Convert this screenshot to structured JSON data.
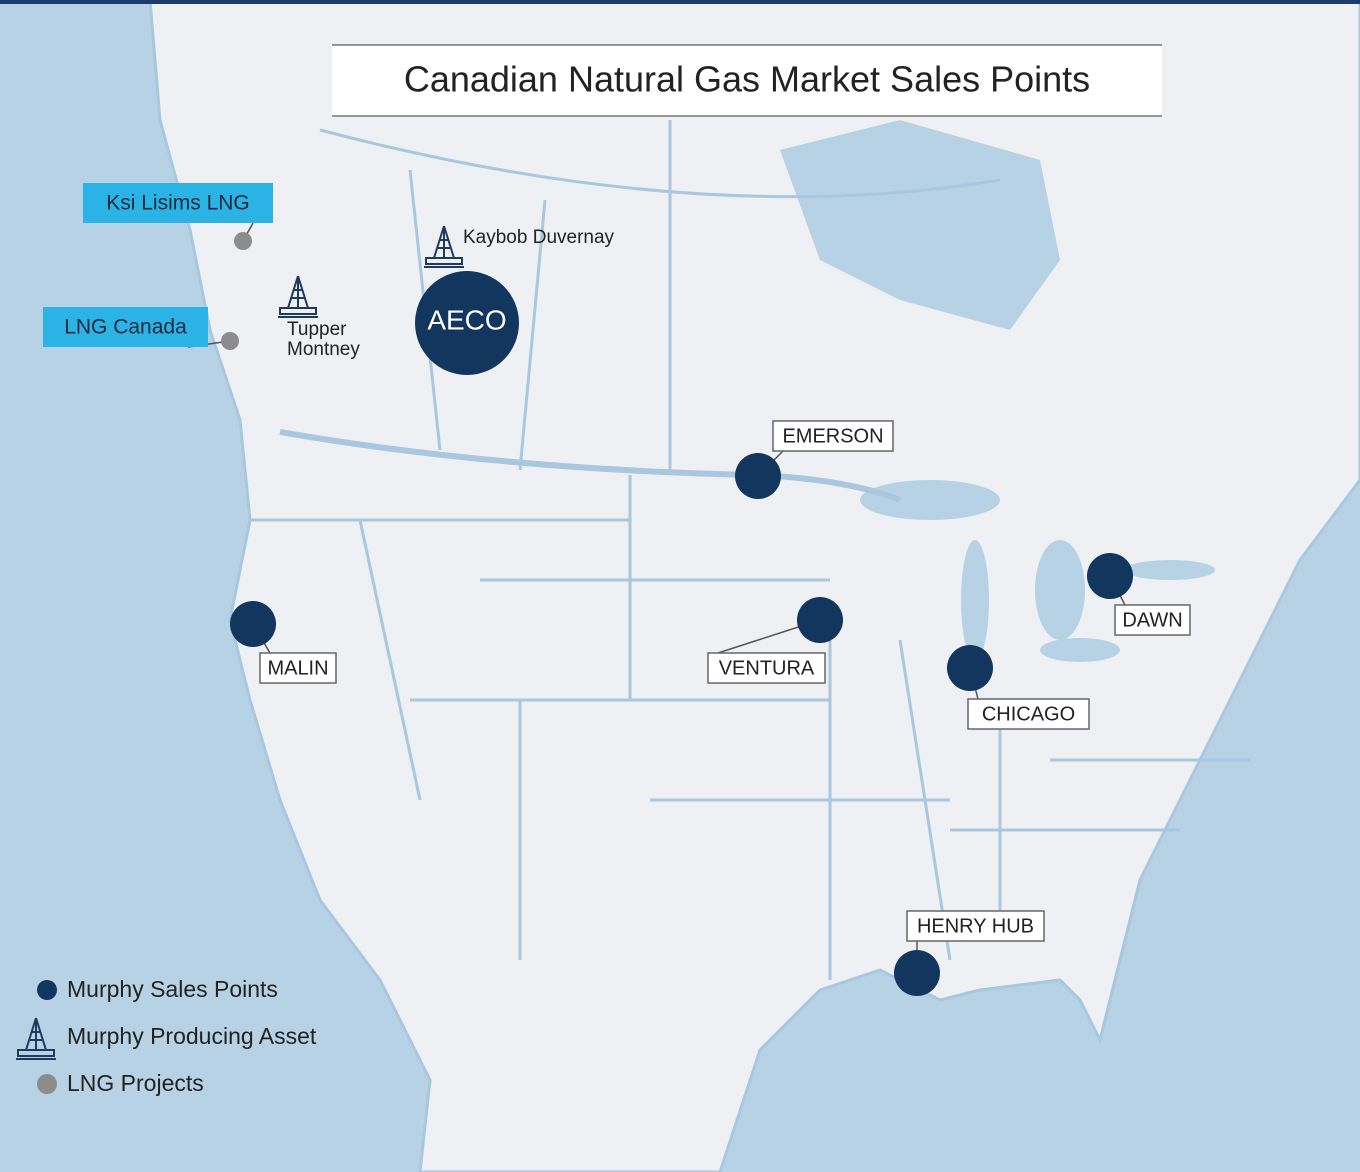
{
  "title": "Canadian Natural Gas Market Sales Points",
  "hub": "AECO",
  "sales_points": [
    {
      "label": "EMERSON"
    },
    {
      "label": "MALIN"
    },
    {
      "label": "VENTURA"
    },
    {
      "label": "DAWN"
    },
    {
      "label": "CHICAGO"
    },
    {
      "label": "HENRY HUB"
    }
  ],
  "lng_projects": [
    {
      "label": "Ksi Lisims LNG"
    },
    {
      "label": "LNG Canada"
    }
  ],
  "producing_assets": [
    {
      "lines": [
        "Kaybob Duvernay"
      ]
    },
    {
      "lines": [
        "Tupper",
        "Montney"
      ]
    }
  ],
  "legend": [
    "Murphy Sales Points",
    "Murphy Producing Asset",
    "LNG Projects"
  ]
}
